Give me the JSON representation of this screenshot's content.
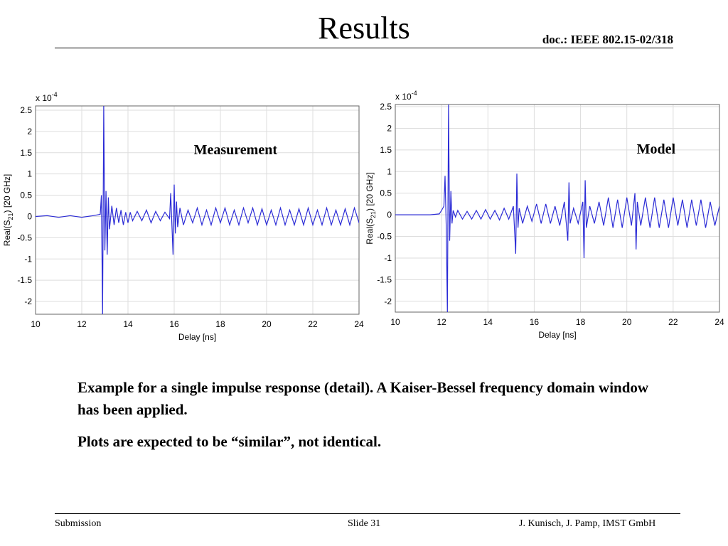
{
  "slide": {
    "title": "Results",
    "doc_ref": "doc.: IEEE 802.15-02/318",
    "caption_1": "Example for a single impulse response (detail). A Kaiser-Bessel frequency domain window has been applied.",
    "caption_2": "Plots are expected to be “similar”, not identical.",
    "footer_left": "Submission",
    "footer_center": "Slide 31",
    "footer_right": "J. Kunisch, J. Pamp, IMST GmbH"
  },
  "chart_data": [
    {
      "type": "line",
      "title": "",
      "annotation": "Measurement",
      "xlabel": "Delay [ns]",
      "ylabel": "Real(S21) [20 GHz]",
      "scale_note": "x 10-4",
      "xlim": [
        10,
        24
      ],
      "ylim": [
        -2.3,
        2.6
      ],
      "x_ticks": [
        10,
        12,
        14,
        16,
        18,
        20,
        22,
        24
      ],
      "x_tick_labels": [
        "10",
        "12",
        "14",
        "16",
        "18",
        "20",
        "22",
        "24"
      ],
      "y_ticks": [
        -2,
        -1.5,
        -1,
        -0.5,
        0,
        0.5,
        1,
        1.5,
        2,
        2.5
      ],
      "y_tick_labels": [
        "-2",
        "-1.5",
        "-1",
        "-0.5",
        "0",
        "0.5",
        "1",
        "1.5",
        "2",
        "2.5"
      ],
      "grid": true,
      "line_color": "#2b2bd6",
      "series": [
        {
          "x": [
            10,
            10.5,
            11,
            11.5,
            12,
            12.5,
            12.8,
            12.85,
            12.9,
            12.95,
            13.0,
            13.05,
            13.1,
            13.15,
            13.2,
            13.3,
            13.4,
            13.5,
            13.6,
            13.7,
            13.8,
            13.9,
            14.0,
            14.1,
            14.2,
            14.4,
            14.6,
            14.8,
            15.0,
            15.2,
            15.4,
            15.6,
            15.8,
            15.85,
            15.95,
            16.0,
            16.05,
            16.1,
            16.15,
            16.25,
            16.4,
            16.6,
            16.8,
            17.0,
            17.2,
            17.4,
            17.6,
            17.8,
            18.0,
            18.2,
            18.4,
            18.6,
            18.8,
            19.0,
            19.2,
            19.4,
            19.6,
            19.8,
            20.0,
            20.2,
            20.4,
            20.6,
            20.8,
            21.0,
            21.2,
            21.4,
            21.6,
            21.8,
            22.0,
            22.2,
            22.4,
            22.6,
            22.8,
            23.0,
            23.2,
            23.4,
            23.6,
            23.8,
            24.0
          ],
          "y": [
            0,
            0.02,
            -0.02,
            0.02,
            -0.02,
            0.02,
            0.05,
            0.5,
            -2.3,
            2.6,
            -0.8,
            0.6,
            -0.9,
            0.45,
            -0.3,
            0.25,
            -0.2,
            0.2,
            -0.15,
            0.15,
            -0.2,
            0.1,
            -0.15,
            0.1,
            -0.1,
            0.12,
            -0.1,
            0.15,
            -0.15,
            0.12,
            -0.1,
            0.1,
            -0.05,
            0.55,
            -0.9,
            0.75,
            -0.4,
            0.35,
            -0.25,
            0.2,
            -0.2,
            0.15,
            -0.15,
            0.2,
            -0.2,
            0.15,
            -0.2,
            0.2,
            -0.15,
            0.2,
            -0.2,
            0.15,
            -0.2,
            0.2,
            -0.15,
            0.2,
            -0.2,
            0.18,
            -0.2,
            0.15,
            -0.2,
            0.2,
            -0.2,
            0.15,
            -0.2,
            0.18,
            -0.2,
            0.2,
            -0.2,
            0.15,
            -0.2,
            0.2,
            -0.2,
            0.15,
            -0.2,
            0.18,
            -0.2,
            0.2,
            -0.15
          ]
        }
      ]
    },
    {
      "type": "line",
      "title": "",
      "annotation": "Model",
      "xlabel": "Delay [ns]",
      "ylabel": "Real(S21) [20 GHz]",
      "scale_note": "x 10-4",
      "xlim": [
        10,
        24
      ],
      "ylim": [
        -2.25,
        2.55
      ],
      "x_ticks": [
        10,
        12,
        14,
        16,
        18,
        20,
        22,
        24
      ],
      "x_tick_labels": [
        "10",
        "12",
        "14",
        "16",
        "18",
        "20",
        "22",
        "24"
      ],
      "y_ticks": [
        -2,
        -1.5,
        -1,
        -0.5,
        0,
        0.5,
        1,
        1.5,
        2,
        2.5
      ],
      "y_tick_labels": [
        "-2",
        "-1.5",
        "-1",
        "-0.5",
        "0",
        "0.5",
        "1",
        "1.5",
        "2",
        "2.5"
      ],
      "grid": true,
      "line_color": "#2b2bd6",
      "series": [
        {
          "x": [
            10,
            10.5,
            11,
            11.5,
            11.9,
            12.0,
            12.1,
            12.15,
            12.2,
            12.25,
            12.3,
            12.35,
            12.4,
            12.45,
            12.5,
            12.6,
            12.7,
            12.9,
            13.1,
            13.3,
            13.5,
            13.7,
            13.9,
            14.1,
            14.3,
            14.5,
            14.7,
            14.9,
            15.1,
            15.2,
            15.25,
            15.3,
            15.35,
            15.5,
            15.7,
            15.9,
            16.1,
            16.3,
            16.5,
            16.7,
            16.9,
            17.1,
            17.3,
            17.45,
            17.5,
            17.55,
            17.7,
            17.9,
            18.1,
            18.15,
            18.2,
            18.25,
            18.4,
            18.6,
            18.8,
            19.0,
            19.2,
            19.4,
            19.6,
            19.8,
            20.0,
            20.2,
            20.35,
            20.4,
            20.45,
            20.6,
            20.8,
            21.0,
            21.2,
            21.4,
            21.6,
            21.8,
            22.0,
            22.2,
            22.4,
            22.6,
            22.8,
            23.0,
            23.2,
            23.4,
            23.6,
            23.8,
            24.0
          ],
          "y": [
            0,
            0.0,
            0.0,
            0.0,
            0.02,
            0.1,
            0.2,
            0.9,
            -0.3,
            -2.25,
            2.55,
            -0.6,
            0.55,
            -0.2,
            0.1,
            -0.05,
            0.1,
            -0.1,
            0.08,
            -0.1,
            0.1,
            -0.1,
            0.12,
            -0.1,
            0.1,
            -0.12,
            0.15,
            -0.1,
            0.2,
            -0.9,
            0.95,
            -0.3,
            0.15,
            -0.2,
            0.2,
            -0.15,
            0.25,
            -0.2,
            0.25,
            -0.2,
            0.2,
            -0.25,
            0.3,
            -0.6,
            0.75,
            -0.2,
            0.15,
            -0.2,
            0.3,
            -1.0,
            0.8,
            -0.3,
            0.2,
            -0.2,
            0.3,
            -0.25,
            0.4,
            -0.3,
            0.35,
            -0.3,
            0.4,
            -0.25,
            0.5,
            -0.8,
            0.3,
            -0.25,
            0.4,
            -0.3,
            0.4,
            -0.3,
            0.35,
            -0.3,
            0.4,
            -0.25,
            0.35,
            -0.3,
            0.35,
            -0.25,
            0.35,
            -0.3,
            0.3,
            -0.25,
            0.2
          ]
        }
      ]
    }
  ]
}
